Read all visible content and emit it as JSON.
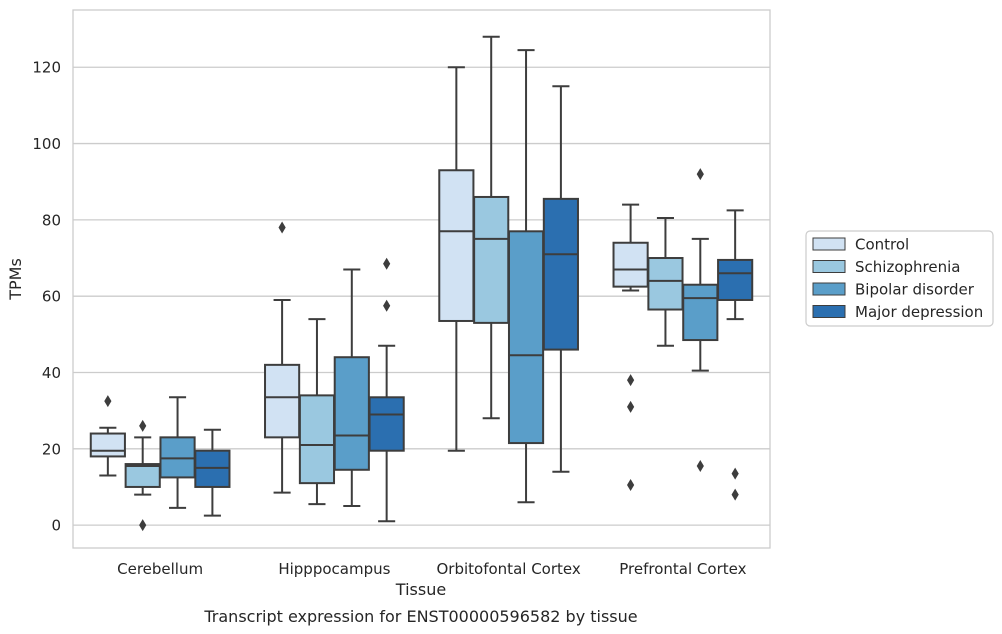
{
  "chart_data": {
    "type": "box",
    "title": "",
    "caption": "Transcript expression for ENST00000596582 by tissue",
    "xlabel": "Tissue",
    "ylabel": "TPMs",
    "ylim": [
      -6,
      135
    ],
    "yticks": [
      0,
      20,
      40,
      60,
      80,
      100,
      120
    ],
    "grid": "horizontal",
    "legend_position": "right",
    "categories": [
      "Cerebellum",
      "Hipppocampus",
      "Orbitofontal Cortex",
      "Prefrontal Cortex"
    ],
    "series": [
      {
        "name": "Control",
        "color": "#d1e2f3",
        "boxes": [
          {
            "whisker_low": 13,
            "q1": 18,
            "median": 19.5,
            "q3": 24,
            "whisker_high": 25.5,
            "outliers": [
              32.5
            ]
          },
          {
            "whisker_low": 8.5,
            "q1": 23,
            "median": 33.5,
            "q3": 42,
            "whisker_high": 59,
            "outliers": [
              78
            ]
          },
          {
            "whisker_low": 19.5,
            "q1": 53.5,
            "median": 77,
            "q3": 93,
            "whisker_high": 120,
            "outliers": []
          },
          {
            "whisker_low": 61.5,
            "q1": 62.5,
            "median": 67,
            "q3": 74,
            "whisker_high": 84,
            "outliers": [
              38,
              31,
              10.5
            ]
          }
        ]
      },
      {
        "name": "Schizophrenia",
        "color": "#9ac8e0",
        "boxes": [
          {
            "whisker_low": 8,
            "q1": 10,
            "median": 15.5,
            "q3": 16,
            "whisker_high": 23,
            "outliers": [
              26,
              0
            ]
          },
          {
            "whisker_low": 5.5,
            "q1": 11,
            "median": 21,
            "q3": 34,
            "whisker_high": 54,
            "outliers": []
          },
          {
            "whisker_low": 28,
            "q1": 53,
            "median": 75,
            "q3": 86,
            "whisker_high": 128,
            "outliers": []
          },
          {
            "whisker_low": 47,
            "q1": 56.5,
            "median": 64,
            "q3": 70,
            "whisker_high": 80.5,
            "outliers": []
          }
        ]
      },
      {
        "name": "Bipolar disorder",
        "color": "#5a9ec9",
        "boxes": [
          {
            "whisker_low": 4.5,
            "q1": 12.5,
            "median": 17.5,
            "q3": 23,
            "whisker_high": 33.5,
            "outliers": []
          },
          {
            "whisker_low": 5,
            "q1": 14.5,
            "median": 23.5,
            "q3": 44,
            "whisker_high": 67,
            "outliers": []
          },
          {
            "whisker_low": 6,
            "q1": 21.5,
            "median": 44.5,
            "q3": 77,
            "whisker_high": 124.5,
            "outliers": []
          },
          {
            "whisker_low": 40.5,
            "q1": 48.5,
            "median": 59.5,
            "q3": 63,
            "whisker_high": 75,
            "outliers": [
              92,
              15.5
            ]
          }
        ]
      },
      {
        "name": "Major depression",
        "color": "#2b6fb0",
        "boxes": [
          {
            "whisker_low": 2.5,
            "q1": 10,
            "median": 15,
            "q3": 19.5,
            "whisker_high": 25,
            "outliers": []
          },
          {
            "whisker_low": 1,
            "q1": 19.5,
            "median": 29,
            "q3": 33.5,
            "whisker_high": 47,
            "outliers": [
              68.5,
              57.5
            ]
          },
          {
            "whisker_low": 14,
            "q1": 46,
            "median": 71,
            "q3": 85.5,
            "whisker_high": 115,
            "outliers": []
          },
          {
            "whisker_low": 54,
            "q1": 59,
            "median": 66,
            "q3": 69.5,
            "whisker_high": 82.5,
            "outliers": [
              13.5,
              8
            ]
          }
        ]
      }
    ]
  }
}
